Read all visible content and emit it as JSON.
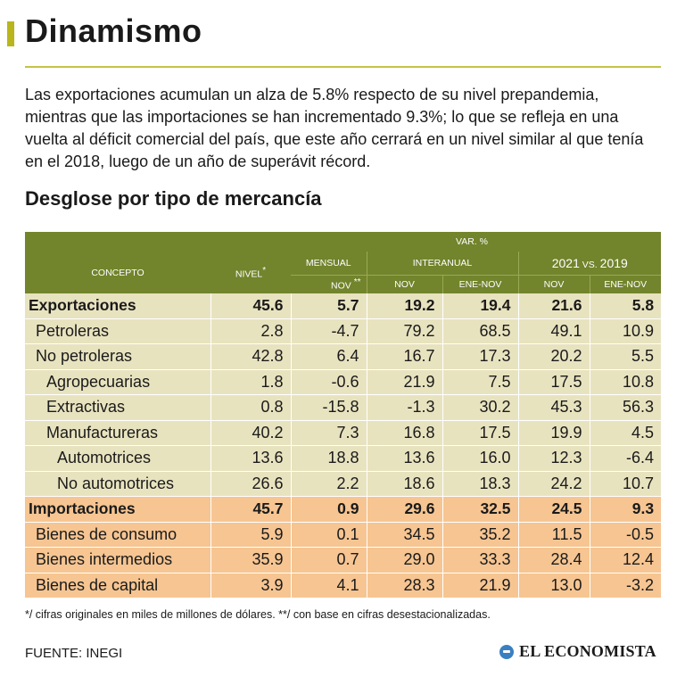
{
  "title": "Dinamismo",
  "intro": "Las exportaciones acumulan un alza de 5.8% respecto de su nivel prepandemia, mientras que las importaciones se han incrementado 9.3%; lo que se refleja en una vuelta al déficit comercial del país, que este año cerrará en un nivel similar al que tenía en el 2018, luego de un año de superávit récord.",
  "subtitle": "Desglose por tipo de mercancía",
  "table": {
    "headers": {
      "var_pct": "VAR. %",
      "concepto": "CONCEPTO",
      "nivel": "NIVEL",
      "nivel_mark": "*",
      "mensual": "MENSUAL",
      "interanual": "INTERANUAL",
      "year_a": "2021",
      "vs": "VS.",
      "year_b": "2019",
      "nov_mensual": "NOV",
      "nov_mark": "**",
      "nov": "NOV",
      "ene_nov": "ENE-NOV",
      "nov_2": "NOV",
      "ene_nov_2": "ENE-NOV"
    },
    "rows": [
      {
        "concepto": "Exportaciones",
        "values": [
          "45.6",
          "5.7",
          "19.2",
          "19.4",
          "21.6",
          "5.8"
        ]
      },
      {
        "concepto": "Petroleras",
        "values": [
          "2.8",
          "-4.7",
          "79.2",
          "68.5",
          "49.1",
          "10.9"
        ]
      },
      {
        "concepto": "No petroleras",
        "values": [
          "42.8",
          "6.4",
          "16.7",
          "17.3",
          "20.2",
          "5.5"
        ]
      },
      {
        "concepto": "Agropecuarias",
        "values": [
          "1.8",
          "-0.6",
          "21.9",
          "7.5",
          "17.5",
          "10.8"
        ]
      },
      {
        "concepto": "Extractivas",
        "values": [
          "0.8",
          "-15.8",
          "-1.3",
          "30.2",
          "45.3",
          "56.3"
        ]
      },
      {
        "concepto": "Manufactureras",
        "values": [
          "40.2",
          "7.3",
          "16.8",
          "17.5",
          "19.9",
          "4.5"
        ]
      },
      {
        "concepto": "Automotrices",
        "values": [
          "13.6",
          "18.8",
          "13.6",
          "16.0",
          "12.3",
          "-6.4"
        ]
      },
      {
        "concepto": "No automotrices",
        "values": [
          "26.6",
          "2.2",
          "18.6",
          "18.3",
          "24.2",
          "10.7"
        ]
      },
      {
        "concepto": "Importaciones",
        "values": [
          "45.7",
          "0.9",
          "29.6",
          "32.5",
          "24.5",
          "9.3"
        ]
      },
      {
        "concepto": "Bienes de consumo",
        "values": [
          "5.9",
          "0.1",
          "34.5",
          "35.2",
          "11.5",
          "-0.5"
        ]
      },
      {
        "concepto": "Bienes intermedios",
        "values": [
          "35.9",
          "0.7",
          "29.0",
          "33.3",
          "28.4",
          "12.4"
        ]
      },
      {
        "concepto": "Bienes de capital",
        "values": [
          "3.9",
          "4.1",
          "28.3",
          "21.9",
          "13.0",
          "-3.2"
        ]
      }
    ]
  },
  "footnote": "*/ cifras originales en miles de millones de dólares. **/ con base en cifras desestacionalizadas.",
  "source": "FUENTE: INEGI",
  "brand": "EL ECONOMISTA",
  "colors": {
    "header_green": "#72842c",
    "export_bg": "#e8e3bf",
    "import_bg": "#f6c592",
    "accent": "#b9b51c"
  }
}
